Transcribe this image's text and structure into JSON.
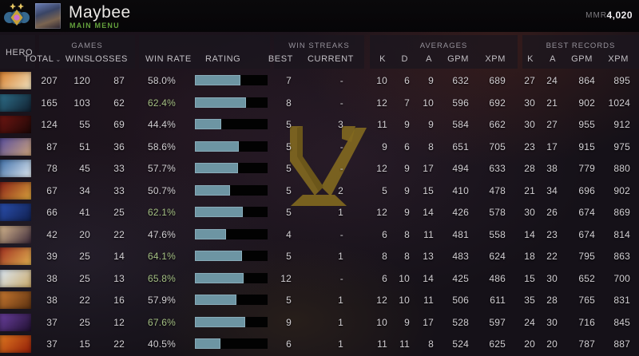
{
  "topbar": {
    "player_name": "Maybee",
    "menu_label": "MAIN MENU",
    "mmr_label": "MMR",
    "mmr_value": "4,020"
  },
  "table": {
    "groups": {
      "games": "GAMES",
      "win_streaks": "WIN STREAKS",
      "averages": "AVERAGES",
      "best_records": "BEST RECORDS"
    },
    "columns": {
      "hero": "HERO",
      "total": "TOTAL",
      "sort_indicator": "⌄",
      "wins": "WINS",
      "losses": "LOSSES",
      "win_rate": "WIN RATE",
      "rating": "RATING",
      "best": "BEST",
      "current": "CURRENT",
      "k": "K",
      "d": "D",
      "a": "A",
      "gpm": "GPM",
      "xpm": "XPM"
    }
  },
  "colors": {
    "accent_green": "#a4bf83",
    "bar_fill": "#6d95a3",
    "bar_track": "#020202",
    "watermark_gold": "#8f741f"
  },
  "rows": [
    {
      "portrait": {
        "c1": "#d8802f",
        "c2": "#f0e3c0"
      },
      "total": "207",
      "wins": "120",
      "losses": "87",
      "win_rate": "58.0%",
      "win_rate_highlight": false,
      "rating_pct": 63,
      "streak_best": "7",
      "streak_current": "-",
      "avg_k": "10",
      "avg_d": "6",
      "avg_a": "9",
      "avg_gpm": "632",
      "avg_xpm": "689",
      "best_k": "27",
      "best_a": "24",
      "best_gpm": "864",
      "best_xpm": "895"
    },
    {
      "portrait": {
        "c1": "#2e6f8a",
        "c2": "#101f2e"
      },
      "total": "165",
      "wins": "103",
      "losses": "62",
      "win_rate": "62.4%",
      "win_rate_highlight": true,
      "rating_pct": 70,
      "streak_best": "8",
      "streak_current": "-",
      "avg_k": "12",
      "avg_d": "7",
      "avg_a": "10",
      "avg_gpm": "596",
      "avg_xpm": "692",
      "best_k": "30",
      "best_a": "21",
      "best_gpm": "902",
      "best_xpm": "1024"
    },
    {
      "portrait": {
        "c1": "#6e1612",
        "c2": "#1c0706"
      },
      "total": "124",
      "wins": "55",
      "losses": "69",
      "win_rate": "44.4%",
      "win_rate_highlight": false,
      "rating_pct": 36,
      "streak_best": "5",
      "streak_current": "3",
      "avg_k": "11",
      "avg_d": "9",
      "avg_a": "9",
      "avg_gpm": "584",
      "avg_xpm": "662",
      "best_k": "30",
      "best_a": "27",
      "best_gpm": "955",
      "best_xpm": "912"
    },
    {
      "portrait": {
        "c1": "#5a4f9e",
        "c2": "#caa27a"
      },
      "total": "87",
      "wins": "51",
      "losses": "36",
      "win_rate": "58.6%",
      "win_rate_highlight": false,
      "rating_pct": 60,
      "streak_best": "5",
      "streak_current": "-",
      "avg_k": "9",
      "avg_d": "6",
      "avg_a": "8",
      "avg_gpm": "651",
      "avg_xpm": "705",
      "best_k": "23",
      "best_a": "17",
      "best_gpm": "915",
      "best_xpm": "975"
    },
    {
      "portrait": {
        "c1": "#3f6fa8",
        "c2": "#dfe8f0"
      },
      "total": "78",
      "wins": "45",
      "losses": "33",
      "win_rate": "57.7%",
      "win_rate_highlight": false,
      "rating_pct": 59,
      "streak_best": "5",
      "streak_current": "-",
      "avg_k": "12",
      "avg_d": "9",
      "avg_a": "17",
      "avg_gpm": "494",
      "avg_xpm": "633",
      "best_k": "28",
      "best_a": "38",
      "best_gpm": "779",
      "best_xpm": "880"
    },
    {
      "portrait": {
        "c1": "#8a2218",
        "c2": "#d8a23c"
      },
      "total": "67",
      "wins": "34",
      "losses": "33",
      "win_rate": "50.7%",
      "win_rate_highlight": false,
      "rating_pct": 48,
      "streak_best": "5",
      "streak_current": "2",
      "avg_k": "5",
      "avg_d": "9",
      "avg_a": "15",
      "avg_gpm": "410",
      "avg_xpm": "478",
      "best_k": "21",
      "best_a": "34",
      "best_gpm": "696",
      "best_xpm": "902"
    },
    {
      "portrait": {
        "c1": "#2a4fae",
        "c2": "#101f4e"
      },
      "total": "66",
      "wins": "41",
      "losses": "25",
      "win_rate": "62.1%",
      "win_rate_highlight": true,
      "rating_pct": 66,
      "streak_best": "5",
      "streak_current": "1",
      "avg_k": "12",
      "avg_d": "9",
      "avg_a": "14",
      "avg_gpm": "426",
      "avg_xpm": "578",
      "best_k": "30",
      "best_a": "26",
      "best_gpm": "674",
      "best_xpm": "869"
    },
    {
      "portrait": {
        "c1": "#d8b88f",
        "c2": "#3a2838"
      },
      "total": "42",
      "wins": "20",
      "losses": "22",
      "win_rate": "47.6%",
      "win_rate_highlight": false,
      "rating_pct": 43,
      "streak_best": "4",
      "streak_current": "-",
      "avg_k": "6",
      "avg_d": "8",
      "avg_a": "11",
      "avg_gpm": "481",
      "avg_xpm": "558",
      "best_k": "14",
      "best_a": "23",
      "best_gpm": "674",
      "best_xpm": "814"
    },
    {
      "portrait": {
        "c1": "#a03020",
        "c2": "#e0b050"
      },
      "total": "39",
      "wins": "25",
      "losses": "14",
      "win_rate": "64.1%",
      "win_rate_highlight": true,
      "rating_pct": 65,
      "streak_best": "5",
      "streak_current": "1",
      "avg_k": "8",
      "avg_d": "8",
      "avg_a": "13",
      "avg_gpm": "483",
      "avg_xpm": "624",
      "best_k": "18",
      "best_a": "22",
      "best_gpm": "795",
      "best_xpm": "863"
    },
    {
      "portrait": {
        "c1": "#dce8f4",
        "c2": "#caa96a"
      },
      "total": "38",
      "wins": "25",
      "losses": "13",
      "win_rate": "65.8%",
      "win_rate_highlight": true,
      "rating_pct": 67,
      "streak_best": "12",
      "streak_current": "-",
      "avg_k": "6",
      "avg_d": "10",
      "avg_a": "14",
      "avg_gpm": "425",
      "avg_xpm": "486",
      "best_k": "15",
      "best_a": "30",
      "best_gpm": "652",
      "best_xpm": "700"
    },
    {
      "portrait": {
        "c1": "#c87830",
        "c2": "#5a3010"
      },
      "total": "38",
      "wins": "22",
      "losses": "16",
      "win_rate": "57.9%",
      "win_rate_highlight": false,
      "rating_pct": 57,
      "streak_best": "5",
      "streak_current": "1",
      "avg_k": "12",
      "avg_d": "10",
      "avg_a": "11",
      "avg_gpm": "506",
      "avg_xpm": "611",
      "best_k": "35",
      "best_a": "28",
      "best_gpm": "765",
      "best_xpm": "831"
    },
    {
      "portrait": {
        "c1": "#6a3f9e",
        "c2": "#201030"
      },
      "total": "37",
      "wins": "25",
      "losses": "12",
      "win_rate": "67.6%",
      "win_rate_highlight": true,
      "rating_pct": 69,
      "streak_best": "9",
      "streak_current": "1",
      "avg_k": "10",
      "avg_d": "9",
      "avg_a": "17",
      "avg_gpm": "528",
      "avg_xpm": "597",
      "best_k": "24",
      "best_a": "30",
      "best_gpm": "716",
      "best_xpm": "845"
    },
    {
      "portrait": {
        "c1": "#e07820",
        "c2": "#901c08"
      },
      "total": "37",
      "wins": "15",
      "losses": "22",
      "win_rate": "40.5%",
      "win_rate_highlight": false,
      "rating_pct": 35,
      "streak_best": "6",
      "streak_current": "1",
      "avg_k": "11",
      "avg_d": "11",
      "avg_a": "8",
      "avg_gpm": "524",
      "avg_xpm": "625",
      "best_k": "20",
      "best_a": "20",
      "best_gpm": "787",
      "best_xpm": "887"
    }
  ]
}
